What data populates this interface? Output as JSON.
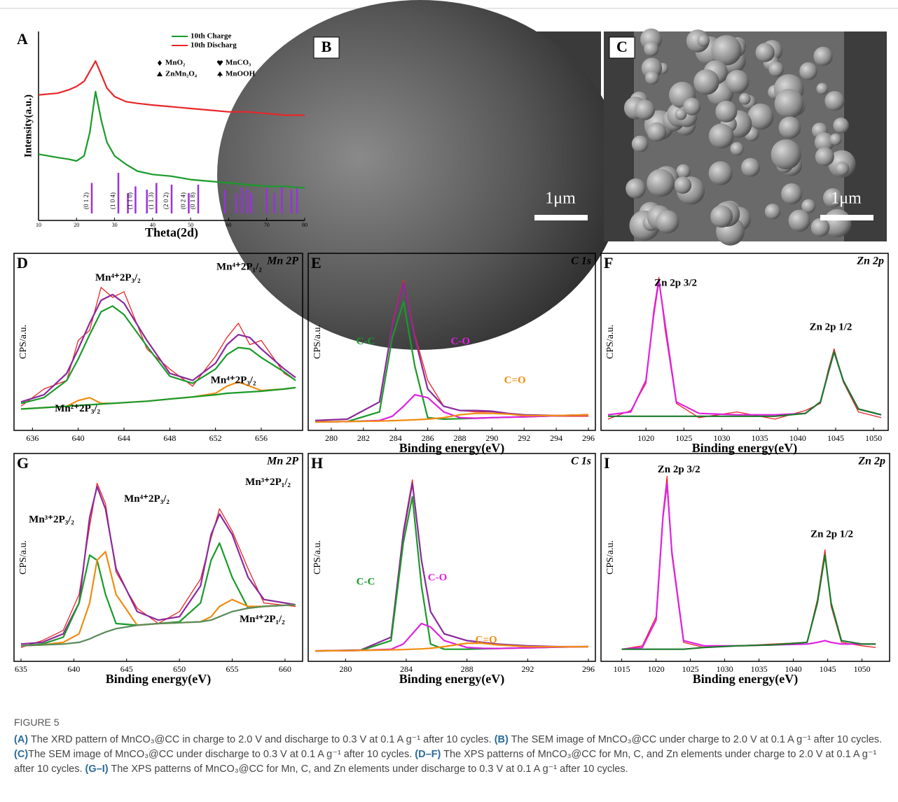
{
  "chart_data": [
    {
      "type": "line",
      "panel": "A",
      "xlabel": "Theta(2d)",
      "ylabel": "Intensity(a.u.)",
      "xlim": [
        10,
        80
      ],
      "xticks": [
        10,
        20,
        30,
        40,
        50,
        60,
        70,
        80
      ],
      "ylim": [
        0,
        100
      ],
      "x": [
        10,
        15,
        18,
        20,
        22,
        23.5,
        25,
        26.5,
        28,
        30,
        33,
        36,
        40,
        45,
        50,
        55,
        60,
        65,
        70,
        75,
        80
      ],
      "series": [
        {
          "name": "10th Charge",
          "color": "#1a9a2a",
          "values": [
            35,
            33,
            32,
            31,
            34,
            48,
            72,
            55,
            42,
            34,
            29,
            25,
            23,
            22,
            20,
            19,
            18,
            17,
            16,
            16,
            15
          ]
        },
        {
          "name": "10th Discharg",
          "color": "#e8262a",
          "values": [
            70,
            71,
            73,
            75,
            78,
            84,
            90,
            82,
            74,
            69,
            66,
            65,
            64,
            63,
            62,
            61,
            60,
            60,
            59,
            58,
            58
          ]
        }
      ],
      "legend_symbols": [
        "MnO₂",
        "MnCO₃",
        "ZnMn₂O₄",
        "MnOOH"
      ],
      "reference": {
        "color": "#9b30e0",
        "sticks": [
          {
            "x": 24,
            "value": 18,
            "label": "(0 1 2)"
          },
          {
            "x": 31,
            "value": 24,
            "label": "(1 0 4)"
          },
          {
            "x": 33.5,
            "value": 12
          },
          {
            "x": 35.5,
            "value": 16,
            "label": "(1 1 0)"
          },
          {
            "x": 38.5,
            "value": 14
          },
          {
            "x": 41,
            "value": 18,
            "label": "(1 1 3)"
          },
          {
            "x": 45,
            "value": 17,
            "label": "(2 0 2)"
          },
          {
            "x": 49.5,
            "value": 12,
            "label": "(0 2 4)"
          },
          {
            "x": 52,
            "value": 17,
            "label": "(0 1 8)"
          },
          {
            "x": 59,
            "value": 14
          },
          {
            "x": 62,
            "value": 12
          },
          {
            "x": 63.5,
            "value": 15
          },
          {
            "x": 65,
            "value": 14
          },
          {
            "x": 66,
            "value": 12
          },
          {
            "x": 70,
            "value": 15
          },
          {
            "x": 72,
            "value": 12
          },
          {
            "x": 74,
            "value": 16
          },
          {
            "x": 76.5,
            "value": 14
          },
          {
            "x": 78,
            "value": 16
          }
        ]
      }
    },
    {
      "type": "line",
      "panel": "D",
      "title": "Mn 2P",
      "ylabel": "CPS/a.u.",
      "xlim": [
        635,
        659
      ],
      "xticks": [
        636,
        640,
        644,
        648,
        652,
        656
      ],
      "ylim": [
        0,
        110
      ],
      "x": [
        635,
        637,
        639,
        640,
        641,
        642,
        643,
        644,
        646,
        648,
        650,
        652,
        653,
        654,
        655,
        656,
        658,
        659
      ],
      "series": [
        {
          "color": "#e8262a",
          "values": [
            12,
            24,
            30,
            58,
            65,
            95,
            88,
            92,
            52,
            38,
            26,
            47,
            60,
            70,
            55,
            58,
            35,
            30
          ]
        },
        {
          "color": "#8a2a9a",
          "values": [
            15,
            20,
            35,
            52,
            70,
            86,
            90,
            84,
            58,
            35,
            30,
            42,
            55,
            62,
            60,
            52,
            38,
            32
          ]
        },
        {
          "color": "#1a9a2a",
          "values": [
            14,
            18,
            30,
            45,
            62,
            78,
            82,
            76,
            54,
            33,
            28,
            38,
            48,
            53,
            52,
            46,
            36,
            30
          ]
        },
        {
          "color": "#f08c10",
          "values": [
            10,
            11,
            12,
            16,
            18,
            14,
            14,
            14.5,
            15.5,
            17,
            18.5,
            21,
            26,
            29,
            26,
            23,
            24,
            25
          ]
        },
        {
          "color": "#1a9a2a",
          "values": [
            10,
            11,
            12,
            12.5,
            13,
            13.5,
            14,
            14.5,
            15.5,
            17,
            18.5,
            20,
            21,
            21.5,
            22,
            22.5,
            24,
            25
          ]
        }
      ],
      "annotations": [
        {
          "text": "Mn⁴⁺2P₃/₂"
        },
        {
          "text": "Mn⁴⁺2P₁/₂"
        },
        {
          "text": "Mn⁴⁺2P₃/₂"
        },
        {
          "text": "Mn²⁺2P₃/₂"
        }
      ]
    },
    {
      "type": "line",
      "panel": "E",
      "title": "C 1s",
      "xlabel": "Binding energy(eV)",
      "ylabel": "CPS/a.u.",
      "xlim": [
        279,
        296
      ],
      "xticks": [
        280,
        282,
        284,
        286,
        288,
        290,
        292,
        294,
        296
      ],
      "ylim": [
        0,
        110
      ],
      "x": [
        279,
        281,
        283,
        283.8,
        284.5,
        285.2,
        286,
        287,
        288,
        289,
        290,
        291,
        292,
        294,
        296
      ],
      "series": [
        {
          "color": "#e8262a",
          "values": [
            2,
            3,
            15,
            70,
            100,
            62,
            30,
            12,
            9,
            8,
            8,
            7,
            6,
            5,
            5
          ]
        },
        {
          "color": "#8a2a9a",
          "values": [
            2,
            3,
            15,
            68,
            98,
            60,
            24,
            12,
            9,
            9,
            8.5,
            7,
            6,
            5.5,
            6
          ]
        },
        {
          "color": "#1a9a2a",
          "values": [
            1,
            1.3,
            8,
            60,
            85,
            40,
            4,
            3,
            3.3,
            3.6,
            4,
            4.3,
            4.6,
            5.3,
            6
          ]
        },
        {
          "color": "#e020e0",
          "values": [
            1,
            1.3,
            2,
            5,
            12,
            20,
            18,
            8,
            4,
            3.6,
            4,
            4.3,
            4.6,
            5.3,
            6
          ]
        },
        {
          "color": "#f08c10",
          "values": [
            1,
            1.3,
            1.6,
            1.9,
            2.2,
            2.5,
            3,
            4,
            6,
            7,
            7,
            6.5,
            5.5,
            5.5,
            6
          ]
        }
      ],
      "annotations": [
        {
          "text": "C-C",
          "color": "#1a9a2a"
        },
        {
          "text": "C-O",
          "color": "#e020e0"
        },
        {
          "text": "C=O",
          "color": "#f08c10"
        }
      ]
    },
    {
      "type": "line",
      "panel": "F",
      "title": "Zn 2p",
      "xlabel": "Binding energy(eV)",
      "ylabel": "CPS/a.u.",
      "xlim": [
        1015,
        1051
      ],
      "xticks": [
        1020,
        1025,
        1030,
        1035,
        1040,
        1045,
        1050
      ],
      "ylim": [
        0,
        110
      ],
      "x": [
        1015,
        1018,
        1020,
        1021,
        1021.7,
        1022.5,
        1024,
        1027,
        1032,
        1037,
        1041,
        1043,
        1044,
        1044.8,
        1046,
        1048,
        1051
      ],
      "series": [
        {
          "color": "#e8262a",
          "values": [
            3,
            9,
            28,
            78,
            102,
            66,
            14,
            4,
            8,
            3,
            9,
            14,
            37,
            52,
            29,
            8,
            4
          ]
        },
        {
          "color": "#e020e0",
          "values": [
            6,
            8,
            30,
            75,
            100,
            70,
            15,
            7,
            6,
            6,
            7,
            15,
            35,
            50,
            30,
            10,
            6
          ]
        },
        {
          "color": "#1a7a2a",
          "values": [
            5,
            5,
            5,
            5,
            5,
            5,
            5,
            5,
            5,
            5,
            7,
            15,
            35,
            50,
            30,
            10,
            6
          ]
        }
      ],
      "annotations": [
        {
          "text": "Zn 2p 3/2"
        },
        {
          "text": "Zn 2p 1/2"
        }
      ]
    },
    {
      "type": "line",
      "panel": "G",
      "title": "Mn 2P",
      "xlabel": "Binding energy(eV)",
      "ylabel": "CPS/a.u.",
      "xlim": [
        635,
        661
      ],
      "xticks": [
        635,
        640,
        645,
        650,
        655,
        660
      ],
      "ylim": [
        0,
        110
      ],
      "x": [
        635,
        637,
        639,
        640.5,
        641.5,
        642.2,
        643,
        644,
        646,
        648,
        650,
        652,
        653,
        653.8,
        655,
        656.5,
        658,
        661
      ],
      "series": [
        {
          "color": "#e8262a",
          "values": [
            4,
            8,
            14,
            35,
            75,
            100,
            88,
            48,
            27,
            18,
            25,
            44,
            68,
            85,
            72,
            50,
            30,
            28
          ]
        },
        {
          "color": "#8a2a9a",
          "values": [
            6,
            7,
            12,
            30,
            80,
            98,
            85,
            50,
            25,
            20,
            22,
            40,
            70,
            82,
            70,
            45,
            32,
            29
          ]
        },
        {
          "color": "#1a9a2a",
          "values": [
            5,
            6,
            10,
            30,
            58,
            55,
            35,
            18,
            17,
            18,
            19,
            30,
            55,
            65,
            45,
            27,
            28,
            29
          ]
        },
        {
          "color": "#f08c10",
          "values": [
            5,
            5.5,
            7,
            12,
            30,
            55,
            60,
            35,
            17,
            18,
            18.5,
            19,
            22,
            28,
            32,
            28,
            28,
            29
          ]
        },
        {
          "color": "#5a8a5a",
          "values": [
            5,
            5.5,
            6,
            7,
            9,
            11,
            13,
            15,
            17,
            18,
            18.5,
            19,
            20,
            22,
            25,
            27,
            28,
            29
          ]
        }
      ],
      "annotations": [
        {
          "text": "Mn³⁺2P₃/₂"
        },
        {
          "text": "Mn⁴⁺2P₃/₂"
        },
        {
          "text": "Mn³⁺2P₁/₂"
        },
        {
          "text": "Mn⁴⁺2P₁/₂"
        }
      ]
    },
    {
      "type": "line",
      "panel": "H",
      "title": "C 1s",
      "xlabel": "Binding energy(eV)",
      "ylabel": "CPS/a.u.",
      "xlim": [
        278,
        296
      ],
      "xticks": [
        280,
        284,
        288,
        292,
        296
      ],
      "ylim": [
        0,
        110
      ],
      "x": [
        278,
        281,
        283,
        283.8,
        284.4,
        285,
        285.6,
        286.5,
        288,
        289,
        290,
        292,
        294,
        296
      ],
      "series": [
        {
          "color": "#e8262a",
          "values": [
            2,
            2.5,
            10,
            72,
            102,
            55,
            25,
            12,
            8,
            7,
            6,
            5,
            4.5,
            4.5
          ]
        },
        {
          "color": "#8a2a9a",
          "values": [
            2,
            2.5,
            10,
            70,
            100,
            55,
            25,
            12,
            8,
            7,
            6,
            5,
            4.5,
            4.5
          ]
        },
        {
          "color": "#1a9a2a",
          "values": [
            2,
            2.3,
            8,
            65,
            92,
            40,
            6,
            3,
            3,
            3.2,
            3.4,
            3.8,
            4.2,
            4.5
          ]
        },
        {
          "color": "#e020e0",
          "values": [
            2,
            2.3,
            3,
            6,
            12,
            18,
            16,
            8,
            4,
            3.5,
            3.4,
            3.8,
            4.2,
            4.5
          ]
        },
        {
          "color": "#f08c10",
          "values": [
            2,
            2.3,
            2.6,
            2.8,
            3,
            3.2,
            3.5,
            4.5,
            6.5,
            6.5,
            5.5,
            4.5,
            4.4,
            4.5
          ]
        }
      ],
      "annotations": [
        {
          "text": "C-C",
          "color": "#1a9a2a"
        },
        {
          "text": "C-O",
          "color": "#e020e0"
        },
        {
          "text": "C=O",
          "color": "#f08c10"
        }
      ]
    },
    {
      "type": "line",
      "panel": "I",
      "title": "Zn 2p",
      "xlabel": "Binding energy(eV)",
      "ylabel": "CPS/a.u.",
      "xlim": [
        1013,
        1053
      ],
      "xticks": [
        1015,
        1020,
        1025,
        1030,
        1035,
        1040,
        1045,
        1050
      ],
      "ylim": [
        0,
        110
      ],
      "x": [
        1015,
        1018,
        1020,
        1021,
        1021.6,
        1022.3,
        1024,
        1027,
        1032,
        1037,
        1042,
        1043.5,
        1044.6,
        1045.5,
        1047,
        1050,
        1052
      ],
      "series": [
        {
          "color": "#e8262a",
          "values": [
            3,
            5,
            22,
            82,
            104,
            58,
            7,
            4,
            5,
            6,
            7,
            32,
            61,
            28,
            7,
            5,
            4
          ]
        },
        {
          "color": "#e020e0",
          "values": [
            3,
            4,
            20,
            80,
            100,
            60,
            8,
            5,
            5,
            5.5,
            6,
            7,
            8,
            7,
            6,
            6,
            6
          ]
        },
        {
          "color": "#1a7a2a",
          "values": [
            3,
            3,
            3,
            3,
            3,
            3,
            3,
            4,
            5,
            5.5,
            7,
            30,
            58,
            30,
            8,
            6,
            6
          ]
        }
      ],
      "annotations": [
        {
          "text": "Zn 2p 3/2"
        },
        {
          "text": "Zn 2p 1/2"
        }
      ]
    }
  ],
  "images": [
    {
      "panel": "B",
      "scale_bar": "1μm"
    },
    {
      "panel": "C",
      "scale_bar": "1μm"
    }
  ],
  "caption": {
    "label": "FIGURE 5",
    "parts": [
      {
        "ref": "(A)",
        "text": " The XRD pattern of MnCO₃@CC in charge to 2.0 V and discharge to 0.3 V at 0.1 A g⁻¹ after 10 cycles. "
      },
      {
        "ref": "(B)",
        "text": " The SEM image of MnCO₃@CC under charge to 2.0 V at 0.1 A g⁻¹ after 10 cycles. "
      },
      {
        "ref": "(C)",
        "text": "The SEM image of MnCO₃@CC under discharge to 0.3 V at 0.1 A g⁻¹ after 10 cycles. "
      },
      {
        "ref": "(D–F)",
        "text": " The XPS patterns of MnCO₃@CC for Mn, C, and Zn elements under charge to 2.0 V at 0.1 A g⁻¹ after 10 cycles. "
      },
      {
        "ref": "(G–I)",
        "text": " The XPS patterns of MnCO₃@CC for Mn, C, and Zn elements under discharge to 0.3 V at 0.1 A g⁻¹ after 10 cycles."
      }
    ]
  }
}
